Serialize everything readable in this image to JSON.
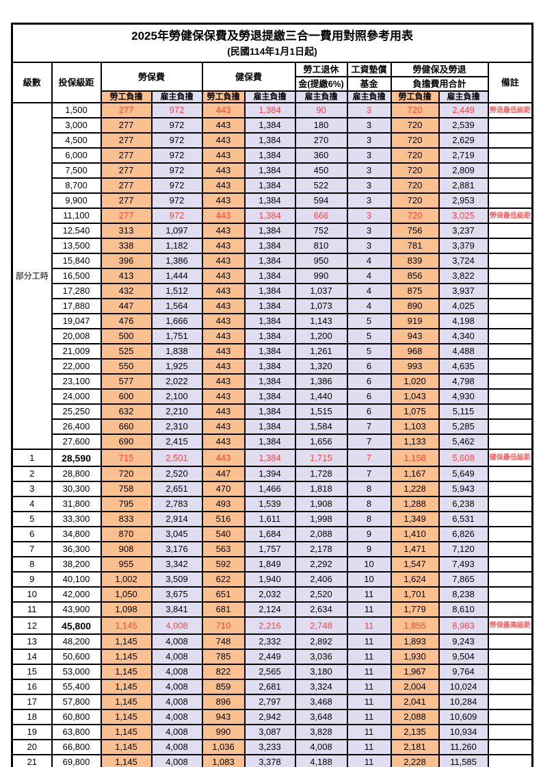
{
  "title": "2025年勞健保保費及勞退提繳三合一費用對照參考用表",
  "subtitle": "(民國114年1月1日起)",
  "columns": {
    "level": "級數",
    "bracket": "投保級距",
    "labor_insurance": "勞保費",
    "health_insurance": "健保費",
    "pension_line1": "勞工退休",
    "pension_line2": "金(提繳6%)",
    "wage_fund_line1": "工資墊償",
    "wage_fund_line2": "基金",
    "total_line1": "勞健保及勞退",
    "total_line2": "負擔費用合計",
    "remarks": "備註",
    "employee_share": "勞工負擔",
    "employer_share": "雇主負擔"
  },
  "part_time_label": "部分工時",
  "part_time_rowspan": 23,
  "colors": {
    "employee_bg": "#FAC08F",
    "employer_bg": "#E0DDF0",
    "highlight_text": "#FF4343",
    "remark_text": "#FF5E5E"
  },
  "rows": [
    {
      "level": "",
      "bracket": "1,500",
      "v": [
        "277",
        "972",
        "443",
        "1,384",
        "90",
        "3",
        "720",
        "2,449"
      ],
      "note": "勞退最低級距",
      "red": true,
      "bold": false
    },
    {
      "level": "",
      "bracket": "3,000",
      "v": [
        "277",
        "972",
        "443",
        "1,384",
        "180",
        "3",
        "720",
        "2,539"
      ],
      "note": "",
      "red": false,
      "bold": false
    },
    {
      "level": "",
      "bracket": "4,500",
      "v": [
        "277",
        "972",
        "443",
        "1,384",
        "270",
        "3",
        "720",
        "2,629"
      ],
      "note": "",
      "red": false,
      "bold": false
    },
    {
      "level": "",
      "bracket": "6,000",
      "v": [
        "277",
        "972",
        "443",
        "1,384",
        "360",
        "3",
        "720",
        "2,719"
      ],
      "note": "",
      "red": false,
      "bold": false
    },
    {
      "level": "",
      "bracket": "7,500",
      "v": [
        "277",
        "972",
        "443",
        "1,384",
        "450",
        "3",
        "720",
        "2,809"
      ],
      "note": "",
      "red": false,
      "bold": false
    },
    {
      "level": "",
      "bracket": "8,700",
      "v": [
        "277",
        "972",
        "443",
        "1,384",
        "522",
        "3",
        "720",
        "2,881"
      ],
      "note": "",
      "red": false,
      "bold": false
    },
    {
      "level": "",
      "bracket": "9,900",
      "v": [
        "277",
        "972",
        "443",
        "1,384",
        "594",
        "3",
        "720",
        "2,953"
      ],
      "note": "",
      "red": false,
      "bold": false
    },
    {
      "level": "",
      "bracket": "11,100",
      "v": [
        "277",
        "972",
        "443",
        "1,384",
        "666",
        "3",
        "720",
        "3,025"
      ],
      "note": "勞保最低級距",
      "red": true,
      "bold": false
    },
    {
      "level": "",
      "bracket": "12,540",
      "v": [
        "313",
        "1,097",
        "443",
        "1,384",
        "752",
        "3",
        "756",
        "3,237"
      ],
      "note": "",
      "red": false,
      "bold": false
    },
    {
      "level": "",
      "bracket": "13,500",
      "v": [
        "338",
        "1,182",
        "443",
        "1,384",
        "810",
        "3",
        "781",
        "3,379"
      ],
      "note": "",
      "red": false,
      "bold": false
    },
    {
      "level": "",
      "bracket": "15,840",
      "v": [
        "396",
        "1,386",
        "443",
        "1,384",
        "950",
        "4",
        "839",
        "3,724"
      ],
      "note": "",
      "red": false,
      "bold": false
    },
    {
      "level": "",
      "bracket": "16,500",
      "v": [
        "413",
        "1,444",
        "443",
        "1,384",
        "990",
        "4",
        "856",
        "3,822"
      ],
      "note": "",
      "red": false,
      "bold": false
    },
    {
      "level": "",
      "bracket": "17,280",
      "v": [
        "432",
        "1,512",
        "443",
        "1,384",
        "1,037",
        "4",
        "875",
        "3,937"
      ],
      "note": "",
      "red": false,
      "bold": false
    },
    {
      "level": "",
      "bracket": "17,880",
      "v": [
        "447",
        "1,564",
        "443",
        "1,384",
        "1,073",
        "4",
        "890",
        "4,025"
      ],
      "note": "",
      "red": false,
      "bold": false
    },
    {
      "level": "",
      "bracket": "19,047",
      "v": [
        "476",
        "1,666",
        "443",
        "1,384",
        "1,143",
        "5",
        "919",
        "4,198"
      ],
      "note": "",
      "red": false,
      "bold": false
    },
    {
      "level": "",
      "bracket": "20,008",
      "v": [
        "500",
        "1,751",
        "443",
        "1,384",
        "1,200",
        "5",
        "943",
        "4,340"
      ],
      "note": "",
      "red": false,
      "bold": false
    },
    {
      "level": "",
      "bracket": "21,009",
      "v": [
        "525",
        "1,838",
        "443",
        "1,384",
        "1,261",
        "5",
        "968",
        "4,488"
      ],
      "note": "",
      "red": false,
      "bold": false
    },
    {
      "level": "",
      "bracket": "22,000",
      "v": [
        "550",
        "1,925",
        "443",
        "1,384",
        "1,320",
        "6",
        "993",
        "4,635"
      ],
      "note": "",
      "red": false,
      "bold": false
    },
    {
      "level": "",
      "bracket": "23,100",
      "v": [
        "577",
        "2,022",
        "443",
        "1,384",
        "1,386",
        "6",
        "1,020",
        "4,798"
      ],
      "note": "",
      "red": false,
      "bold": false
    },
    {
      "level": "",
      "bracket": "24,000",
      "v": [
        "600",
        "2,100",
        "443",
        "1,384",
        "1,440",
        "6",
        "1,043",
        "4,930"
      ],
      "note": "",
      "red": false,
      "bold": false
    },
    {
      "level": "",
      "bracket": "25,250",
      "v": [
        "632",
        "2,210",
        "443",
        "1,384",
        "1,515",
        "6",
        "1,075",
        "5,115"
      ],
      "note": "",
      "red": false,
      "bold": false
    },
    {
      "level": "",
      "bracket": "26,400",
      "v": [
        "660",
        "2,310",
        "443",
        "1,384",
        "1,584",
        "7",
        "1,103",
        "5,285"
      ],
      "note": "",
      "red": false,
      "bold": false
    },
    {
      "level": "",
      "bracket": "27,600",
      "v": [
        "690",
        "2,415",
        "443",
        "1,384",
        "1,656",
        "7",
        "1,133",
        "5,462"
      ],
      "note": "",
      "red": false,
      "bold": false
    },
    {
      "level": "1",
      "bracket": "28,590",
      "v": [
        "715",
        "2,501",
        "443",
        "1,384",
        "1,715",
        "7",
        "1,158",
        "5,608"
      ],
      "note": "健保最低級距",
      "red": true,
      "bold": true
    },
    {
      "level": "2",
      "bracket": "28,800",
      "v": [
        "720",
        "2,520",
        "447",
        "1,394",
        "1,728",
        "7",
        "1,167",
        "5,649"
      ],
      "note": "",
      "red": false,
      "bold": false
    },
    {
      "level": "3",
      "bracket": "30,300",
      "v": [
        "758",
        "2,651",
        "470",
        "1,466",
        "1,818",
        "8",
        "1,228",
        "5,943"
      ],
      "note": "",
      "red": false,
      "bold": false
    },
    {
      "level": "4",
      "bracket": "31,800",
      "v": [
        "795",
        "2,783",
        "493",
        "1,539",
        "1,908",
        "8",
        "1,288",
        "6,238"
      ],
      "note": "",
      "red": false,
      "bold": false
    },
    {
      "level": "5",
      "bracket": "33,300",
      "v": [
        "833",
        "2,914",
        "516",
        "1,611",
        "1,998",
        "8",
        "1,349",
        "6,531"
      ],
      "note": "",
      "red": false,
      "bold": false
    },
    {
      "level": "6",
      "bracket": "34,800",
      "v": [
        "870",
        "3,045",
        "540",
        "1,684",
        "2,088",
        "9",
        "1,410",
        "6,826"
      ],
      "note": "",
      "red": false,
      "bold": false
    },
    {
      "level": "7",
      "bracket": "36,300",
      "v": [
        "908",
        "3,176",
        "563",
        "1,757",
        "2,178",
        "9",
        "1,471",
        "7,120"
      ],
      "note": "",
      "red": false,
      "bold": false
    },
    {
      "level": "8",
      "bracket": "38,200",
      "v": [
        "955",
        "3,342",
        "592",
        "1,849",
        "2,292",
        "10",
        "1,547",
        "7,493"
      ],
      "note": "",
      "red": false,
      "bold": false
    },
    {
      "level": "9",
      "bracket": "40,100",
      "v": [
        "1,002",
        "3,509",
        "622",
        "1,940",
        "2,406",
        "10",
        "1,624",
        "7,865"
      ],
      "note": "",
      "red": false,
      "bold": false
    },
    {
      "level": "10",
      "bracket": "42,000",
      "v": [
        "1,050",
        "3,675",
        "651",
        "2,032",
        "2,520",
        "11",
        "1,701",
        "8,238"
      ],
      "note": "",
      "red": false,
      "bold": false
    },
    {
      "level": "11",
      "bracket": "43,900",
      "v": [
        "1,098",
        "3,841",
        "681",
        "2,124",
        "2,634",
        "11",
        "1,779",
        "8,610"
      ],
      "note": "",
      "red": false,
      "bold": false
    },
    {
      "level": "12",
      "bracket": "45,800",
      "v": [
        "1,145",
        "4,008",
        "710",
        "2,216",
        "2,748",
        "11",
        "1,855",
        "8,983"
      ],
      "note": "勞保最高級距",
      "red": true,
      "bold": true
    },
    {
      "level": "13",
      "bracket": "48,200",
      "v": [
        "1,145",
        "4,008",
        "748",
        "2,332",
        "2,892",
        "11",
        "1,893",
        "9,243"
      ],
      "note": "",
      "red": false,
      "bold": false
    },
    {
      "level": "14",
      "bracket": "50,600",
      "v": [
        "1,145",
        "4,008",
        "785",
        "2,449",
        "3,036",
        "11",
        "1,930",
        "9,504"
      ],
      "note": "",
      "red": false,
      "bold": false
    },
    {
      "level": "15",
      "bracket": "53,000",
      "v": [
        "1,145",
        "4,008",
        "822",
        "2,565",
        "3,180",
        "11",
        "1,967",
        "9,764"
      ],
      "note": "",
      "red": false,
      "bold": false
    },
    {
      "level": "16",
      "bracket": "55,400",
      "v": [
        "1,145",
        "4,008",
        "859",
        "2,681",
        "3,324",
        "11",
        "2,004",
        "10,024"
      ],
      "note": "",
      "red": false,
      "bold": false
    },
    {
      "level": "17",
      "bracket": "57,800",
      "v": [
        "1,145",
        "4,008",
        "896",
        "2,797",
        "3,468",
        "11",
        "2,041",
        "10,284"
      ],
      "note": "",
      "red": false,
      "bold": false
    },
    {
      "level": "18",
      "bracket": "60,800",
      "v": [
        "1,145",
        "4,008",
        "943",
        "2,942",
        "3,648",
        "11",
        "2,088",
        "10,609"
      ],
      "note": "",
      "red": false,
      "bold": false
    },
    {
      "level": "19",
      "bracket": "63,800",
      "v": [
        "1,145",
        "4,008",
        "990",
        "3,087",
        "3,828",
        "11",
        "2,135",
        "10,934"
      ],
      "note": "",
      "red": false,
      "bold": false
    },
    {
      "level": "20",
      "bracket": "66,800",
      "v": [
        "1,145",
        "4,008",
        "1,036",
        "3,233",
        "4,008",
        "11",
        "2,181",
        "11,260"
      ],
      "note": "",
      "red": false,
      "bold": false
    },
    {
      "level": "21",
      "bracket": "69,800",
      "v": [
        "1,145",
        "4,008",
        "1,083",
        "3,378",
        "4,188",
        "11",
        "2,228",
        "11,585"
      ],
      "note": "",
      "red": false,
      "bold": false
    }
  ]
}
